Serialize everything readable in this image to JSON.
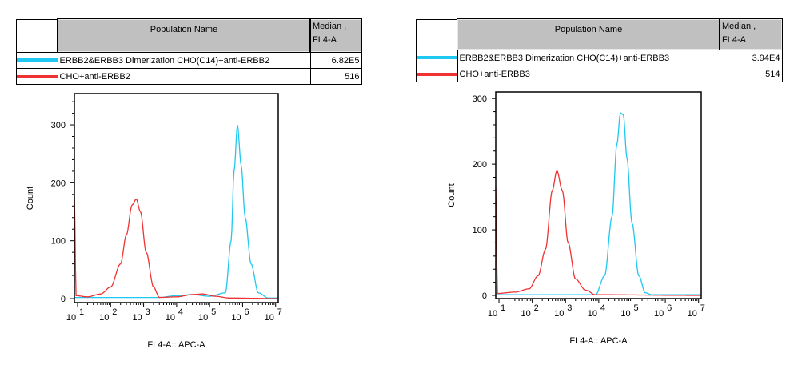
{
  "colors": {
    "blue": "#1ec8f0",
    "red": "#f03232"
  },
  "tables": [
    {
      "header": {
        "name": "Population Name",
        "median": "Median ,\nFL4-A"
      },
      "rows": [
        {
          "color": "blue",
          "name": "ERBB2&ERBB3 Dimerization CHO(C14)+anti-ERBB2",
          "median": "6.82E5"
        },
        {
          "color": "red",
          "name": "CHO+anti-ERBB2",
          "median": "516"
        }
      ]
    },
    {
      "header": {
        "name": "Population Name",
        "median": "Median ,\nFL4-A"
      },
      "rows": [
        {
          "color": "blue",
          "name": "ERBB2&ERBB3 Dimerization CHO(C14)+anti-ERBB3",
          "median": "3.94E4"
        },
        {
          "color": "red",
          "name": "CHO+anti-ERBB3",
          "median": "514"
        }
      ]
    }
  ],
  "chart_data": [
    {
      "type": "line",
      "xlabel": "FL4-A:: APC-A",
      "ylabel": "Count",
      "xscale": "log",
      "xlim": [
        8,
        12000000
      ],
      "ylim": [
        0,
        354
      ],
      "xticks": [
        "10|1",
        "10|2",
        "10|3",
        "10|4",
        "10|5",
        "10|6",
        "10|7"
      ],
      "yticks": [
        0,
        100,
        200,
        300
      ],
      "series": [
        {
          "name": "ERBB2&ERBB3 Dimerization CHO(C14)+anti-ERBB2",
          "color": "blue",
          "points": [
            [
              8,
              2
            ],
            [
              3000,
              2
            ],
            [
              10000,
              5
            ],
            [
              30000,
              7
            ],
            [
              100000,
              4
            ],
            [
              300000,
              10
            ],
            [
              450000,
              100
            ],
            [
              550000,
              220
            ],
            [
              700000,
              300
            ],
            [
              900000,
              230
            ],
            [
              1200000,
              140
            ],
            [
              1800000,
              60
            ],
            [
              3000000,
              10
            ],
            [
              6000000,
              1
            ],
            [
              12000000,
              1
            ]
          ]
        },
        {
          "name": "CHO+anti-ERBB2",
          "color": "red",
          "points": [
            [
              8,
              175
            ],
            [
              9,
              5
            ],
            [
              20,
              3
            ],
            [
              50,
              8
            ],
            [
              100,
              20
            ],
            [
              200,
              60
            ],
            [
              300,
              110
            ],
            [
              450,
              162
            ],
            [
              600,
              172
            ],
            [
              800,
              150
            ],
            [
              1200,
              80
            ],
            [
              2000,
              20
            ],
            [
              3000,
              2
            ],
            [
              10000,
              3
            ],
            [
              30000,
              7
            ],
            [
              60000,
              8
            ],
            [
              150000,
              4
            ],
            [
              400000,
              1
            ],
            [
              12000000,
              0
            ]
          ]
        }
      ]
    },
    {
      "type": "line",
      "xlabel": "FL4-A:: APC-A",
      "ylabel": "Count",
      "xscale": "log",
      "xlim": [
        8,
        12000000
      ],
      "ylim": [
        0,
        310
      ],
      "xticks": [
        "10|1",
        "10|2",
        "10|3",
        "10|4",
        "10|5",
        "10|6",
        "10|7"
      ],
      "yticks": [
        0,
        100,
        200,
        300
      ],
      "series": [
        {
          "name": "ERBB2&ERBB3 Dimerization CHO(C14)+anti-ERBB3",
          "color": "blue",
          "points": [
            [
              8,
              1
            ],
            [
              8000,
              1
            ],
            [
              15000,
              30
            ],
            [
              25000,
              120
            ],
            [
              35000,
              230
            ],
            [
              45000,
              278
            ],
            [
              55000,
              275
            ],
            [
              70000,
              210
            ],
            [
              100000,
              110
            ],
            [
              160000,
              30
            ],
            [
              250000,
              4
            ],
            [
              400000,
              1
            ],
            [
              12000000,
              1
            ]
          ]
        },
        {
          "name": "CHO+anti-ERBB3",
          "color": "red",
          "points": [
            [
              8,
              165
            ],
            [
              9,
              3
            ],
            [
              30,
              5
            ],
            [
              80,
              10
            ],
            [
              150,
              30
            ],
            [
              250,
              70
            ],
            [
              400,
              160
            ],
            [
              550,
              190
            ],
            [
              800,
              160
            ],
            [
              1200,
              80
            ],
            [
              2000,
              25
            ],
            [
              4000,
              8
            ],
            [
              8000,
              1
            ],
            [
              12000000,
              0
            ]
          ]
        }
      ]
    }
  ]
}
